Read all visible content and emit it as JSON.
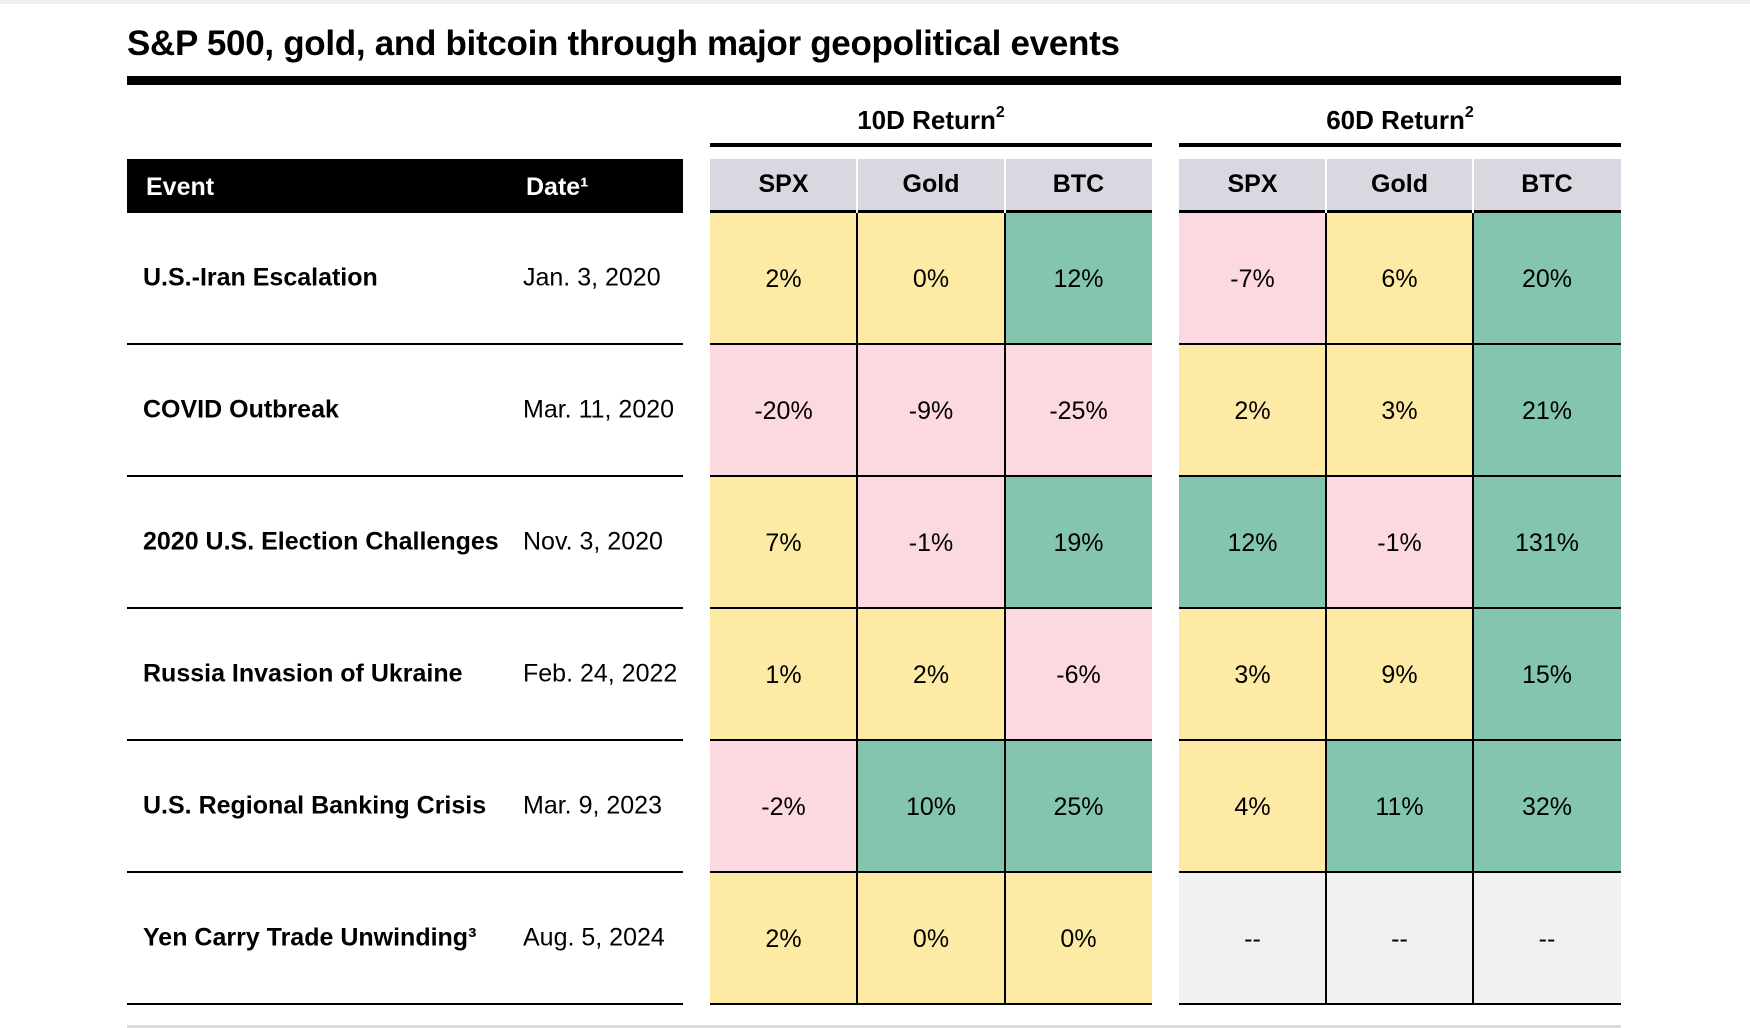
{
  "chart_data": {
    "type": "table",
    "title": "S&P 500, gold, and bitcoin through major geopolitical events",
    "headers": {
      "event": "Event",
      "date": "Date¹"
    },
    "groups": [
      {
        "label": "10D Return",
        "sup": "2",
        "columns": [
          "SPX",
          "Gold",
          "BTC"
        ]
      },
      {
        "label": "60D Return",
        "sup": "2",
        "columns": [
          "SPX",
          "Gold",
          "BTC"
        ]
      }
    ],
    "rows": [
      {
        "event": "U.S.-Iran Escalation",
        "date": "Jan. 3, 2020",
        "values": [
          "2%",
          "0%",
          "12%",
          "-7%",
          "6%",
          "20%"
        ],
        "numeric": [
          2,
          0,
          12,
          -7,
          6,
          20
        ]
      },
      {
        "event": "COVID Outbreak",
        "date": "Mar. 11, 2020",
        "values": [
          "-20%",
          "-9%",
          "-25%",
          "2%",
          "3%",
          "21%"
        ],
        "numeric": [
          -20,
          -9,
          -25,
          2,
          3,
          21
        ]
      },
      {
        "event": "2020 U.S. Election Challenges",
        "date": "Nov. 3, 2020",
        "values": [
          "7%",
          "-1%",
          "19%",
          "12%",
          "-1%",
          "131%"
        ],
        "numeric": [
          7,
          -1,
          19,
          12,
          -1,
          131
        ]
      },
      {
        "event": "Russia Invasion of Ukraine",
        "date": "Feb. 24, 2022",
        "values": [
          "1%",
          "2%",
          "-6%",
          "3%",
          "9%",
          "15%"
        ],
        "numeric": [
          1,
          2,
          -6,
          3,
          9,
          15
        ]
      },
      {
        "event": "U.S. Regional Banking Crisis",
        "date": "Mar. 9, 2023",
        "values": [
          "-2%",
          "10%",
          "25%",
          "4%",
          "11%",
          "32%"
        ],
        "numeric": [
          -2,
          10,
          25,
          4,
          11,
          32
        ]
      },
      {
        "event": "Yen Carry Trade Unwinding³",
        "date": "Aug. 5, 2024",
        "values": [
          "2%",
          "0%",
          "0%",
          "--",
          "--",
          "--"
        ],
        "numeric": [
          2,
          0,
          0,
          null,
          null,
          null
        ]
      }
    ],
    "colors": {
      "positive_high": "#84c5ae",
      "neutral": "#fdeaa4",
      "negative": "#fcd8e0",
      "na": "#f1f1f1",
      "header_bg": "#d9d7df"
    },
    "color_rule": "green if value >= 10%, yellow if 0% to 9%, pink if negative, gray if not available"
  }
}
